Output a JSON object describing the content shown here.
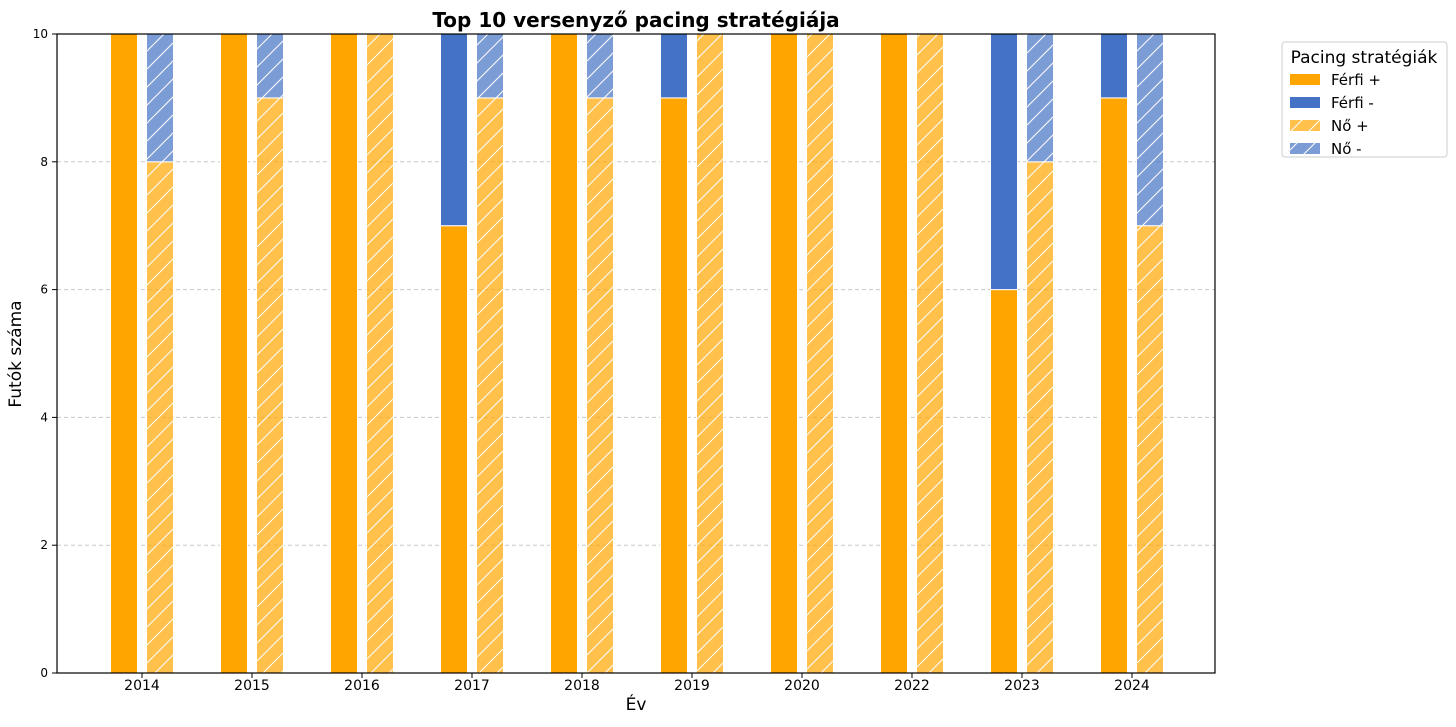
{
  "chart_data": {
    "type": "bar",
    "title": "Top 10 versenyző pacing stratégiája",
    "xlabel": "Év",
    "ylabel": "Futók száma",
    "categories": [
      "2014",
      "2015",
      "2016",
      "2017",
      "2018",
      "2019",
      "2020",
      "2022",
      "2023",
      "2024"
    ],
    "ylim": [
      0,
      10
    ],
    "yticks": [
      0,
      2,
      4,
      6,
      8,
      10
    ],
    "grid": "horizontal dashed",
    "legend_title": "Pacing stratégiák",
    "legend_position": "outside top-right",
    "groups": [
      {
        "name": "Férfi",
        "series": [
          {
            "name": "Férfi +",
            "color": "#FFA500",
            "hatch": false,
            "values": [
              10,
              10,
              10,
              7,
              10,
              9,
              10,
              10,
              6,
              9
            ]
          },
          {
            "name": "Férfi -",
            "color": "#4472C4",
            "hatch": false,
            "values": [
              0,
              0,
              0,
              3,
              0,
              1,
              0,
              0,
              4,
              1
            ]
          }
        ]
      },
      {
        "name": "Nő",
        "series": [
          {
            "name": "Nő +",
            "color": "#FFA500",
            "hatch": true,
            "values": [
              8,
              9,
              10,
              9,
              9,
              10,
              10,
              10,
              8,
              7
            ]
          },
          {
            "name": "Nő -",
            "color": "#4472C4",
            "hatch": true,
            "values": [
              2,
              1,
              0,
              1,
              1,
              0,
              0,
              0,
              2,
              3
            ]
          }
        ]
      }
    ]
  }
}
